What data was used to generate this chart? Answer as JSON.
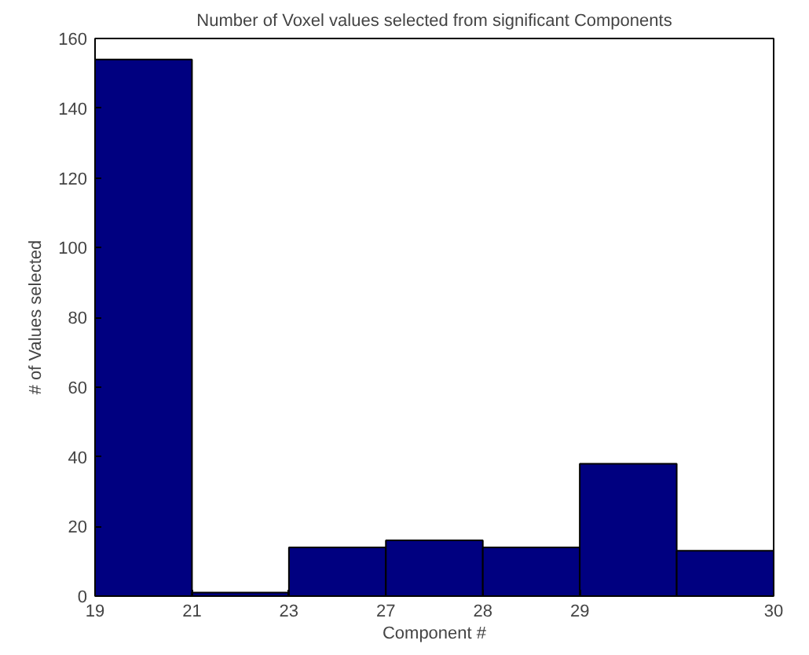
{
  "chart_data": {
    "type": "bar",
    "title": "Number of Voxel values selected from significant Components",
    "xlabel": "Component #",
    "ylabel": "# of Values selected",
    "categories": [
      "19",
      "21",
      "23",
      "27",
      "28",
      "29",
      "30"
    ],
    "values": [
      154,
      1,
      14,
      16,
      14,
      38,
      13
    ],
    "color": "#000080",
    "ylim": [
      0,
      160
    ],
    "yticks": [
      0,
      20,
      40,
      60,
      80,
      100,
      120,
      140,
      160
    ],
    "grid": false
  }
}
